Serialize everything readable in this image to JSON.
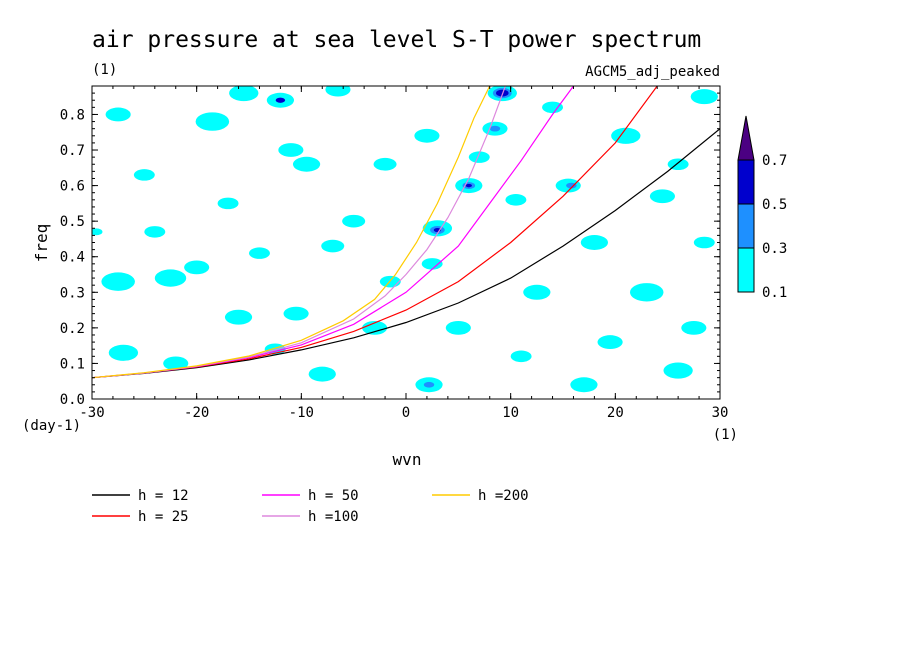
{
  "chart_data": {
    "type": "heatmap",
    "title": "air pressure at sea level S-T power spectrum",
    "subtitle": "(1)",
    "model_label": "AGCM5_adj_peaked",
    "xlabel": "wvn",
    "ylabel": "freq",
    "x_unit": "(1)",
    "y_unit": "(day-1)",
    "xlim": [
      -30,
      30
    ],
    "ylim": [
      0,
      0.88
    ],
    "x_ticks": [
      -30,
      -20,
      -10,
      0,
      10,
      20,
      30
    ],
    "x_tick_labels": [
      "-30",
      "-20",
      "-10",
      "0",
      "10",
      "20",
      "30"
    ],
    "y_ticks": [
      0.0,
      0.1,
      0.2,
      0.3,
      0.4,
      0.5,
      0.6,
      0.7,
      0.8
    ],
    "y_tick_labels": [
      "0.0",
      "0.1",
      "0.2",
      "0.3",
      "0.4",
      "0.5",
      "0.6",
      "0.7",
      "0.8"
    ],
    "colorbar": {
      "levels": [
        "0.1",
        "0.3",
        "0.5",
        "0.7"
      ],
      "colors": [
        "#00ffff",
        "#1e90ff",
        "#0000cd",
        "#4b0082"
      ]
    },
    "contour_blobs": [
      {
        "x": -29.6,
        "y": 0.47,
        "r": 0.6,
        "level": 0.1
      },
      {
        "x": -27.5,
        "y": 0.33,
        "r": 1.6,
        "level": 0.1
      },
      {
        "x": -22.5,
        "y": 0.34,
        "r": 1.5,
        "level": 0.1
      },
      {
        "x": -20,
        "y": 0.37,
        "r": 1.2,
        "level": 0.1
      },
      {
        "x": -27,
        "y": 0.13,
        "r": 1.4,
        "level": 0.1
      },
      {
        "x": -22,
        "y": 0.1,
        "r": 1.2,
        "level": 0.1
      },
      {
        "x": -27.5,
        "y": 0.8,
        "r": 1.2,
        "level": 0.1
      },
      {
        "x": -18.5,
        "y": 0.78,
        "r": 1.6,
        "level": 0.1
      },
      {
        "x": -25,
        "y": 0.63,
        "r": 1.0,
        "level": 0.1
      },
      {
        "x": -17,
        "y": 0.55,
        "r": 1.0,
        "level": 0.1
      },
      {
        "x": -15.5,
        "y": 0.86,
        "r": 1.4,
        "level": 0.1
      },
      {
        "x": -12,
        "y": 0.84,
        "r": 1.3,
        "level": 0.1
      },
      {
        "x": -12,
        "y": 0.84,
        "r": 0.45,
        "level": 0.5
      },
      {
        "x": -11,
        "y": 0.7,
        "r": 1.2,
        "level": 0.1
      },
      {
        "x": -9.5,
        "y": 0.66,
        "r": 1.3,
        "level": 0.1
      },
      {
        "x": -16,
        "y": 0.23,
        "r": 1.3,
        "level": 0.1
      },
      {
        "x": -10.5,
        "y": 0.24,
        "r": 1.2,
        "level": 0.1
      },
      {
        "x": -12.5,
        "y": 0.14,
        "r": 1.0,
        "level": 0.1
      },
      {
        "x": -8,
        "y": 0.07,
        "r": 1.3,
        "level": 0.1
      },
      {
        "x": -7,
        "y": 0.43,
        "r": 1.1,
        "level": 0.1
      },
      {
        "x": -6.5,
        "y": 0.87,
        "r": 1.2,
        "level": 0.1
      },
      {
        "x": -5,
        "y": 0.5,
        "r": 1.1,
        "level": 0.1
      },
      {
        "x": -3,
        "y": 0.2,
        "r": 1.2,
        "level": 0.1
      },
      {
        "x": -2,
        "y": 0.66,
        "r": 1.1,
        "level": 0.1
      },
      {
        "x": 2,
        "y": 0.74,
        "r": 1.2,
        "level": 0.1
      },
      {
        "x": 3,
        "y": 0.48,
        "r": 1.4,
        "level": 0.1
      },
      {
        "x": 3,
        "y": 0.475,
        "r": 0.7,
        "level": 0.3
      },
      {
        "x": 3,
        "y": 0.475,
        "r": 0.35,
        "level": 0.5
      },
      {
        "x": 2.2,
        "y": 0.04,
        "r": 1.3,
        "level": 0.1
      },
      {
        "x": 2.2,
        "y": 0.04,
        "r": 0.5,
        "level": 0.3
      },
      {
        "x": 2.5,
        "y": 0.38,
        "r": 1.0,
        "level": 0.1
      },
      {
        "x": 5,
        "y": 0.2,
        "r": 1.2,
        "level": 0.1
      },
      {
        "x": 6,
        "y": 0.6,
        "r": 1.3,
        "level": 0.1
      },
      {
        "x": 6,
        "y": 0.6,
        "r": 0.6,
        "level": 0.3
      },
      {
        "x": 6,
        "y": 0.6,
        "r": 0.3,
        "level": 0.5
      },
      {
        "x": 7,
        "y": 0.68,
        "r": 1.0,
        "level": 0.1
      },
      {
        "x": 8.5,
        "y": 0.76,
        "r": 1.2,
        "level": 0.1
      },
      {
        "x": 8.5,
        "y": 0.76,
        "r": 0.5,
        "level": 0.3
      },
      {
        "x": 9.2,
        "y": 0.86,
        "r": 1.4,
        "level": 0.1
      },
      {
        "x": 9.2,
        "y": 0.86,
        "r": 0.9,
        "level": 0.3
      },
      {
        "x": 9.2,
        "y": 0.86,
        "r": 0.6,
        "level": 0.5
      },
      {
        "x": 10.5,
        "y": 0.56,
        "r": 1.0,
        "level": 0.1
      },
      {
        "x": 12.5,
        "y": 0.3,
        "r": 1.3,
        "level": 0.1
      },
      {
        "x": 15.5,
        "y": 0.6,
        "r": 1.2,
        "level": 0.1
      },
      {
        "x": 15.8,
        "y": 0.6,
        "r": 0.5,
        "level": 0.3
      },
      {
        "x": 18,
        "y": 0.44,
        "r": 1.3,
        "level": 0.1
      },
      {
        "x": 19.5,
        "y": 0.16,
        "r": 1.2,
        "level": 0.1
      },
      {
        "x": 21,
        "y": 0.74,
        "r": 1.4,
        "level": 0.1
      },
      {
        "x": 23,
        "y": 0.3,
        "r": 1.6,
        "level": 0.1
      },
      {
        "x": 24.5,
        "y": 0.57,
        "r": 1.2,
        "level": 0.1
      },
      {
        "x": 26,
        "y": 0.08,
        "r": 1.4,
        "level": 0.1
      },
      {
        "x": 28.5,
        "y": 0.44,
        "r": 1.0,
        "level": 0.1
      },
      {
        "x": 28.5,
        "y": 0.85,
        "r": 1.3,
        "level": 0.1
      },
      {
        "x": 27.5,
        "y": 0.2,
        "r": 1.2,
        "level": 0.1
      },
      {
        "x": 14,
        "y": 0.82,
        "r": 1.0,
        "level": 0.1
      },
      {
        "x": -1.5,
        "y": 0.33,
        "r": 1.0,
        "level": 0.1
      },
      {
        "x": -24,
        "y": 0.47,
        "r": 1.0,
        "level": 0.1
      },
      {
        "x": 17,
        "y": 0.04,
        "r": 1.3,
        "level": 0.1
      },
      {
        "x": -14,
        "y": 0.41,
        "r": 1.0,
        "level": 0.1
      },
      {
        "x": 11,
        "y": 0.12,
        "r": 1.0,
        "level": 0.1
      },
      {
        "x": 26,
        "y": 0.66,
        "r": 1.0,
        "level": 0.1
      }
    ],
    "series": [
      {
        "name": "h = 12",
        "color": "#000000",
        "x": [
          -30,
          -25,
          -20,
          -15,
          -10,
          -5,
          0,
          5,
          10,
          15,
          20,
          25,
          30
        ],
        "y": [
          0.06,
          0.072,
          0.088,
          0.11,
          0.138,
          0.172,
          0.215,
          0.27,
          0.34,
          0.43,
          0.53,
          0.64,
          0.76
        ]
      },
      {
        "name": "h = 25",
        "color": "#ff0000",
        "x": [
          -30,
          -25,
          -20,
          -15,
          -10,
          -5,
          0,
          5,
          10,
          15,
          20,
          24
        ],
        "y": [
          0.06,
          0.073,
          0.09,
          0.113,
          0.145,
          0.19,
          0.25,
          0.33,
          0.44,
          0.57,
          0.72,
          0.88
        ]
      },
      {
        "name": "h = 50",
        "color": "#ff00ff",
        "x": [
          -30,
          -25,
          -20,
          -15,
          -10,
          -5,
          0,
          5,
          8,
          11,
          14,
          16
        ],
        "y": [
          0.06,
          0.073,
          0.091,
          0.116,
          0.152,
          0.21,
          0.3,
          0.43,
          0.55,
          0.67,
          0.8,
          0.88
        ]
      },
      {
        "name": "h =100",
        "color": "#dd88dd",
        "x": [
          -30,
          -25,
          -20,
          -15,
          -10,
          -5,
          -2,
          0,
          2,
          4,
          6,
          8,
          9.5
        ],
        "y": [
          0.06,
          0.073,
          0.092,
          0.118,
          0.158,
          0.225,
          0.29,
          0.35,
          0.42,
          0.51,
          0.62,
          0.76,
          0.88
        ]
      },
      {
        "name": "h =200",
        "color": "#ffcc00",
        "x": [
          -30,
          -25,
          -20,
          -15,
          -10,
          -6,
          -3,
          -1,
          1,
          3,
          5,
          6.5,
          8
        ],
        "y": [
          0.06,
          0.074,
          0.093,
          0.121,
          0.165,
          0.22,
          0.28,
          0.35,
          0.44,
          0.55,
          0.68,
          0.79,
          0.88
        ]
      }
    ]
  }
}
